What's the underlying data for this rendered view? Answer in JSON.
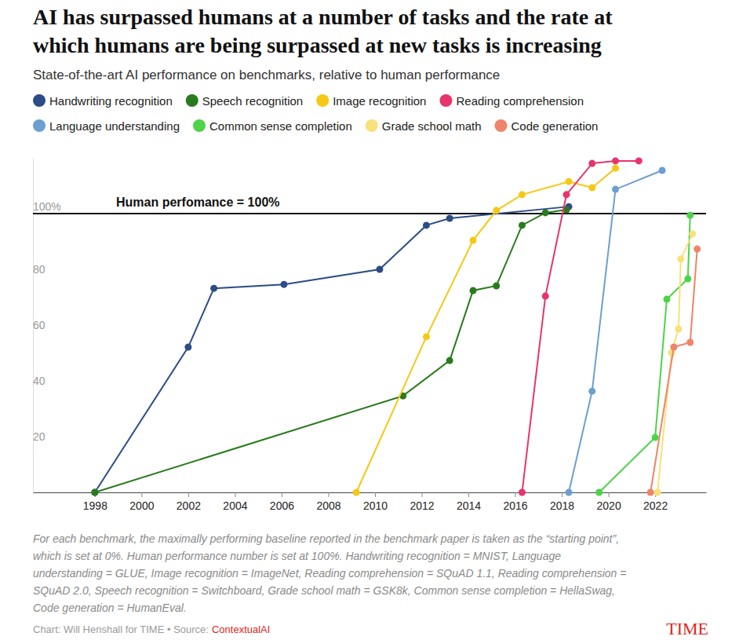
{
  "chart_data": {
    "type": "line",
    "title": [
      "AI has surpassed humans at a number of tasks and the rate at",
      "which humans are being surpassed at new tasks is increasing"
    ],
    "subtitle": "State-of-the-art AI performance on benchmarks, relative to human performance",
    "marker": "circle",
    "grid": false,
    "legend": "top",
    "xlim": [
      1995.35,
      2024.18
    ],
    "xticks": [
      1998,
      2000,
      2002,
      2004,
      2006,
      2008,
      2010,
      2012,
      2014,
      2016,
      2018,
      2020,
      2022
    ],
    "ylim": [
      0,
      120
    ],
    "yticks": [
      20,
      40,
      60,
      80,
      {
        "value": 100,
        "label": "100%"
      }
    ],
    "reference_line": {
      "value": 100,
      "label": "Human perfomance = 100%"
    },
    "series": [
      {
        "name": "Handwriting recognition",
        "color": "#2b4c86",
        "x": [
          1998,
          2002,
          2003.1,
          2006.1,
          2010.2,
          2012.2,
          2013.2,
          2018.3
        ],
        "values": [
          0,
          52.1,
          73.2,
          74.6,
          80,
          95.8,
          98.3,
          102.5
        ]
      },
      {
        "name": "Speech recognition",
        "color": "#2a7a1e",
        "x": [
          1998,
          2011.2,
          2013.2,
          2014.2,
          2015.2,
          2016.3,
          2017.3,
          2018.2
        ],
        "values": [
          0,
          34.6,
          47.3,
          72.4,
          74.1,
          95.8,
          100.3,
          101.4
        ]
      },
      {
        "name": "Image recognition",
        "color": "#f5c814",
        "x": [
          2009.2,
          2012.2,
          2014.2,
          2015.2,
          2016.3,
          2018.3,
          2019.3,
          2020.3
        ],
        "values": [
          0,
          55.8,
          90.4,
          101.1,
          106.8,
          111.5,
          109.3,
          116.3
        ]
      },
      {
        "name": "Reading comprehension",
        "color": "#e8336b",
        "x": [
          2016.3,
          2017.3,
          2018.2,
          2019.3,
          2020.3,
          2021.3
        ],
        "values": [
          0,
          70.4,
          106.8,
          118,
          118.9,
          118.9
        ]
      },
      {
        "name": "Language understanding",
        "color": "#6c9fcf",
        "x": [
          2018.3,
          2019.3,
          2020.3,
          2022.3
        ],
        "values": [
          0,
          36.3,
          108.7,
          115.5
        ]
      },
      {
        "name": "Common sense completion",
        "color": "#4dd34a",
        "x": [
          2019.6,
          2022,
          2022.5,
          2023.4,
          2023.5
        ],
        "values": [
          0,
          19.7,
          69.3,
          76.6,
          99.4
        ]
      },
      {
        "name": "Grade school math",
        "color": "#f8e07a",
        "x": [
          2022.1,
          2022.7,
          2023,
          2023.1,
          2023.6
        ],
        "values": [
          0,
          50.1,
          58.6,
          83.7,
          92.7
        ]
      },
      {
        "name": "Code generation",
        "color": "#ef8468",
        "x": [
          2021.8,
          2022.8,
          2023.5,
          2023.8
        ],
        "values": [
          0,
          52.1,
          53.8,
          87.3
        ]
      }
    ],
    "note": [
      "For each benchmark, the maximally performing baseline reported in the benchmark paper is taken as the “starting point”,",
      "which is set at 0%. Human performance number is set at 100%. Handwriting recognition = MNIST, Language",
      "understanding = GLUE, Image recognition = ImageNet, Reading comprehension = SQuAD 1.1, Reading comprehension =",
      "SQuAD 2.0, Speech recognition = Switchboard, Grade school math = GSK8k, Common sense completion = HellaSwag,",
      "Code generation = HumanEval."
    ],
    "credit": "Chart: Will Henshall for TIME • Source:",
    "source": "ContextualAI",
    "brand": "TIME"
  }
}
